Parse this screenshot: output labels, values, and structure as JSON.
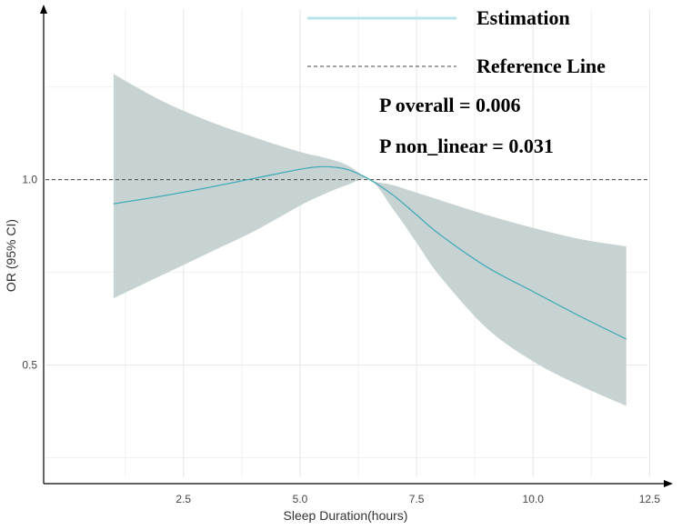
{
  "chart_data": {
    "type": "line",
    "xlabel": "Sleep Duration(hours)",
    "ylabel": "OR (95% CI)",
    "xlim": [
      -0.5,
      13.0
    ],
    "ylim": [
      0.18,
      1.47
    ],
    "x_ticks": [
      2.5,
      5.0,
      7.5,
      10.0,
      12.5
    ],
    "x_tick_labels": [
      "2.5",
      "5.0",
      "7.5",
      "10.0",
      "12.5"
    ],
    "y_ticks": [
      0.5,
      1.0
    ],
    "y_tick_labels": [
      "0.5",
      "1.0"
    ],
    "reference_line": 1.0,
    "grid": true,
    "legend_position": "top-right",
    "legend": [
      {
        "label": "Estimation",
        "style": "solid",
        "color": "#b7e3ea"
      },
      {
        "label": "Reference Line",
        "style": "dashed",
        "color": "#444444"
      }
    ],
    "annotations": [
      "P overall = 0.006",
      "P non_linear = 0.031"
    ],
    "series": [
      {
        "name": "Estimation",
        "color": "#45aab7",
        "x": [
          1.0,
          2.0,
          3.0,
          4.0,
          5.0,
          5.5,
          6.0,
          6.5,
          7.0,
          7.5,
          8.0,
          9.0,
          10.0,
          11.0,
          12.0
        ],
        "values": [
          0.935,
          0.955,
          0.978,
          1.003,
          1.028,
          1.035,
          1.028,
          1.0,
          0.958,
          0.905,
          0.852,
          0.765,
          0.698,
          0.632,
          0.57
        ],
        "ci_lower": [
          0.68,
          0.74,
          0.8,
          0.86,
          0.93,
          0.96,
          0.985,
          1.0,
          0.92,
          0.83,
          0.74,
          0.6,
          0.51,
          0.445,
          0.39
        ],
        "ci_upper": [
          1.285,
          1.215,
          1.16,
          1.115,
          1.075,
          1.06,
          1.04,
          1.0,
          0.985,
          0.965,
          0.945,
          0.905,
          0.87,
          0.84,
          0.82
        ]
      }
    ]
  },
  "colors": {
    "ci_band": "#c7d3d3",
    "estimate_line": "#45aab7",
    "legend_estimate_line": "#b7e3ea",
    "grid_major": "#e6e6e6",
    "grid_minor": "#f1f1f1",
    "axis": "#000000",
    "reference_line": "#444444"
  }
}
